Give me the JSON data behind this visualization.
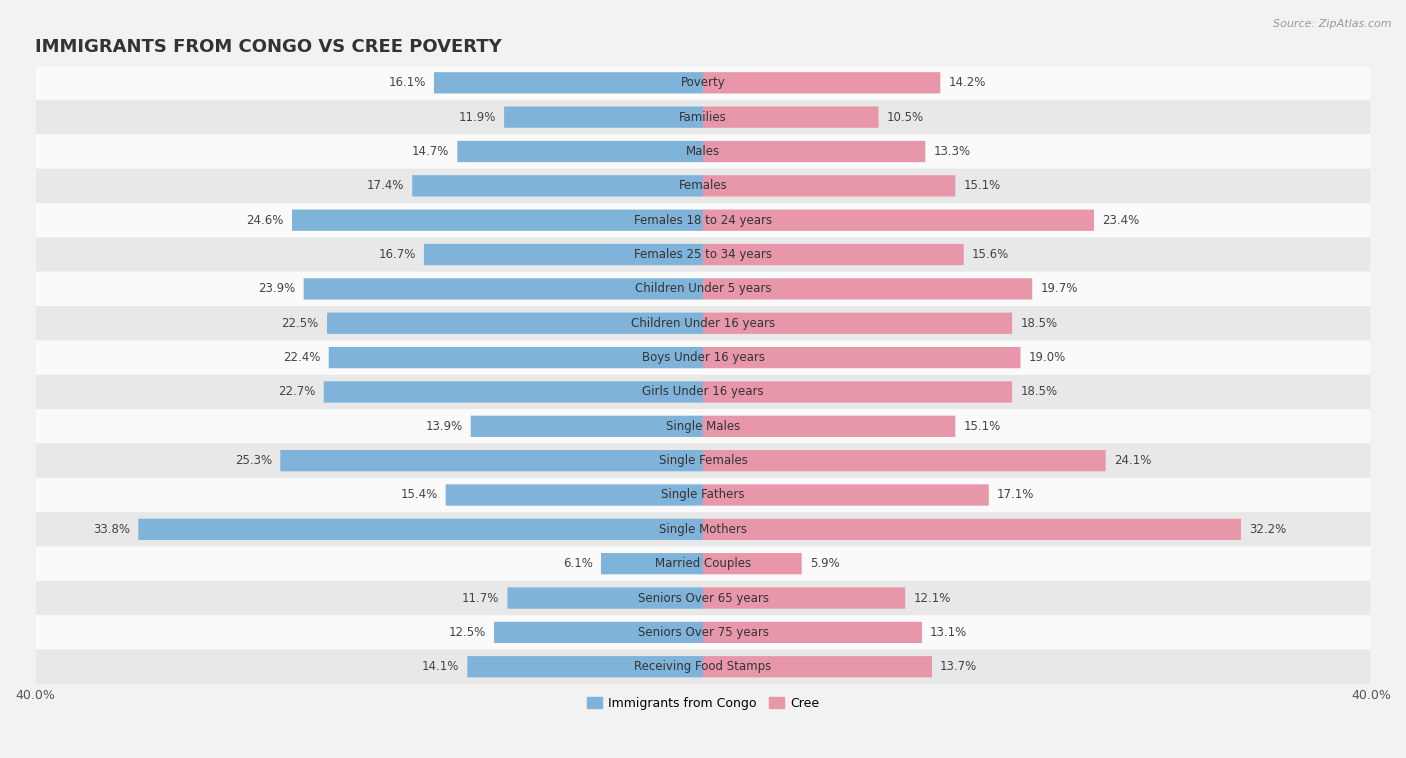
{
  "title": "IMMIGRANTS FROM CONGO VS CREE POVERTY",
  "source": "Source: ZipAtlas.com",
  "categories": [
    "Poverty",
    "Families",
    "Males",
    "Females",
    "Females 18 to 24 years",
    "Females 25 to 34 years",
    "Children Under 5 years",
    "Children Under 16 years",
    "Boys Under 16 years",
    "Girls Under 16 years",
    "Single Males",
    "Single Females",
    "Single Fathers",
    "Single Mothers",
    "Married Couples",
    "Seniors Over 65 years",
    "Seniors Over 75 years",
    "Receiving Food Stamps"
  ],
  "congo_values": [
    16.1,
    11.9,
    14.7,
    17.4,
    24.6,
    16.7,
    23.9,
    22.5,
    22.4,
    22.7,
    13.9,
    25.3,
    15.4,
    33.8,
    6.1,
    11.7,
    12.5,
    14.1
  ],
  "cree_values": [
    14.2,
    10.5,
    13.3,
    15.1,
    23.4,
    15.6,
    19.7,
    18.5,
    19.0,
    18.5,
    15.1,
    24.1,
    17.1,
    32.2,
    5.9,
    12.1,
    13.1,
    13.7
  ],
  "congo_color": "#7fb3d9",
  "cree_color": "#e896aa",
  "background_color": "#f2f2f2",
  "row_light_color": "#fafafa",
  "row_dark_color": "#e8e8e8",
  "axis_limit": 40.0,
  "title_fontsize": 13,
  "label_fontsize": 8.5,
  "value_fontsize": 8.5,
  "legend_label_congo": "Immigrants from Congo",
  "legend_label_cree": "Cree"
}
